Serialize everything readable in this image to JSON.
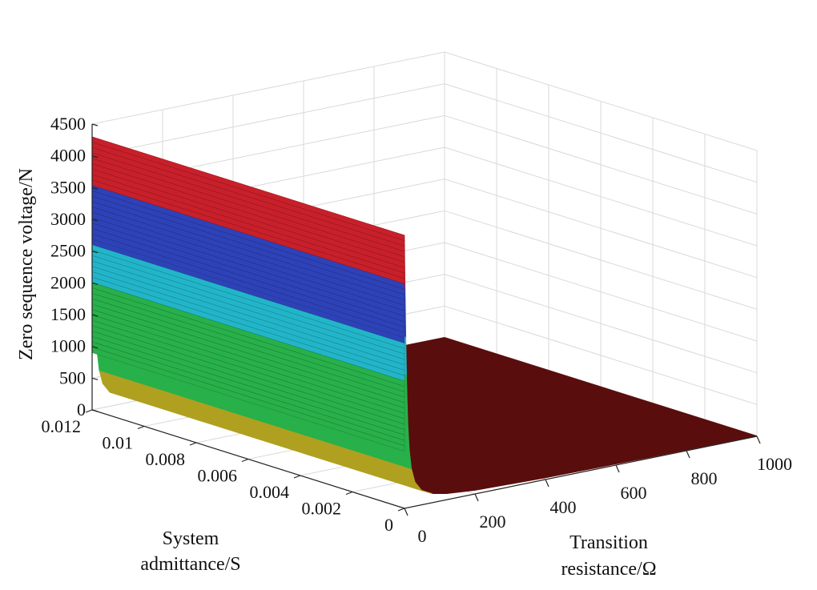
{
  "chart_data": {
    "type": "surface3d",
    "title": "",
    "xlabel": "Transition resistance/Ω",
    "xlabel_lines": [
      "Transition",
      "resistance/Ω"
    ],
    "ylabel": "System admittance/S",
    "ylabel_lines": [
      "System",
      "admittance/S"
    ],
    "zlabel": "Zero sequence voltage/N",
    "xlim": [
      0,
      1000
    ],
    "ylim": [
      0,
      0.012
    ],
    "zlim": [
      0,
      4500
    ],
    "x_ticks": [
      "0",
      "200",
      "400",
      "600",
      "800",
      "1000"
    ],
    "y_ticks": [
      "0",
      "0.002",
      "0.004",
      "0.006",
      "0.008",
      "0.01",
      "0.012"
    ],
    "z_ticks": [
      "0",
      "500",
      "1000",
      "1500",
      "2000",
      "2500",
      "3000",
      "3500",
      "4000",
      "4500"
    ],
    "grid": true,
    "colormap": "jet-like",
    "surface": {
      "description_values": "Zero sequence voltage is high (~4300) at transition resistance 0 and drops steeply to near 0 as resistance increases; nearly constant along system admittance.",
      "z_at_x0": 4300,
      "z_at_x_large": 0,
      "x_samples": [
        0,
        2,
        4,
        6,
        8,
        10,
        14,
        20,
        30,
        50,
        80,
        120,
        200,
        400,
        700,
        1000
      ],
      "z_samples": [
        4300,
        3450,
        2700,
        2100,
        1650,
        1300,
        900,
        600,
        380,
        220,
        140,
        95,
        55,
        25,
        12,
        8
      ]
    },
    "band_colors": {
      "red": "#c8202a",
      "blue": "#2e42b8",
      "cyan": "#22b5c9",
      "green": "#28b04a",
      "olive": "#b0a020",
      "dark_red": "#5a0d0d"
    }
  }
}
